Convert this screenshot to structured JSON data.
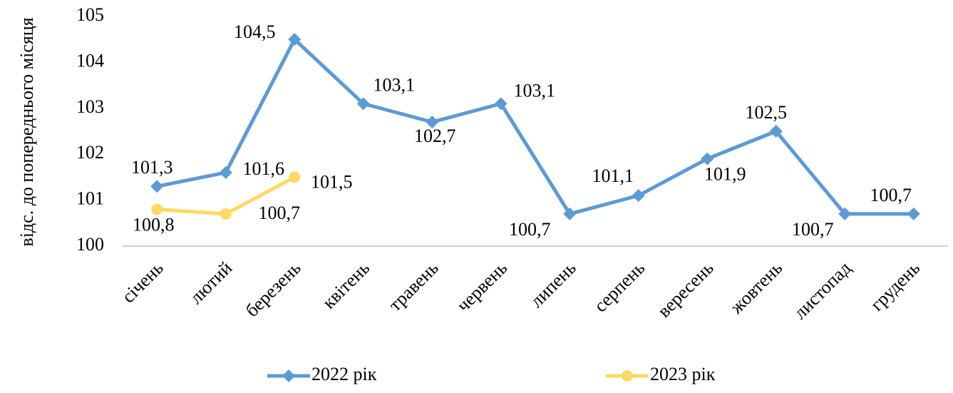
{
  "chart_data": {
    "type": "line",
    "y_label": "відс. до попереднього місяця",
    "categories": [
      "січень",
      "лютий",
      "березень",
      "квітень",
      "травень",
      "червень",
      "липень",
      "серпень",
      "вересень",
      "жовтень",
      "листопад",
      "грудень"
    ],
    "series": [
      {
        "name": "2022 рік",
        "color": "#5b9bd5",
        "marker": "diamond",
        "values": [
          101.3,
          101.6,
          104.5,
          103.1,
          102.7,
          103.1,
          100.7,
          101.1,
          101.9,
          102.5,
          100.7,
          100.7
        ],
        "value_labels": [
          "101,3",
          "101,6",
          "104,5",
          "103,1",
          "102,7",
          "103,1",
          "100,7",
          "101,1",
          "101,9",
          "102,5",
          "100,7",
          "100,7"
        ]
      },
      {
        "name": "2023 рік",
        "color": "#ffd966",
        "marker": "circle",
        "values": [
          100.8,
          100.7,
          101.5,
          null,
          null,
          null,
          null,
          null,
          null,
          null,
          null,
          null
        ],
        "value_labels": [
          "100,8",
          "100,7",
          "101,5",
          null,
          null,
          null,
          null,
          null,
          null,
          null,
          null,
          null
        ]
      }
    ],
    "ylim": [
      100,
      105
    ],
    "yticks": [
      100,
      101,
      102,
      103,
      104,
      105
    ],
    "grid": false,
    "legend": "bottom"
  }
}
